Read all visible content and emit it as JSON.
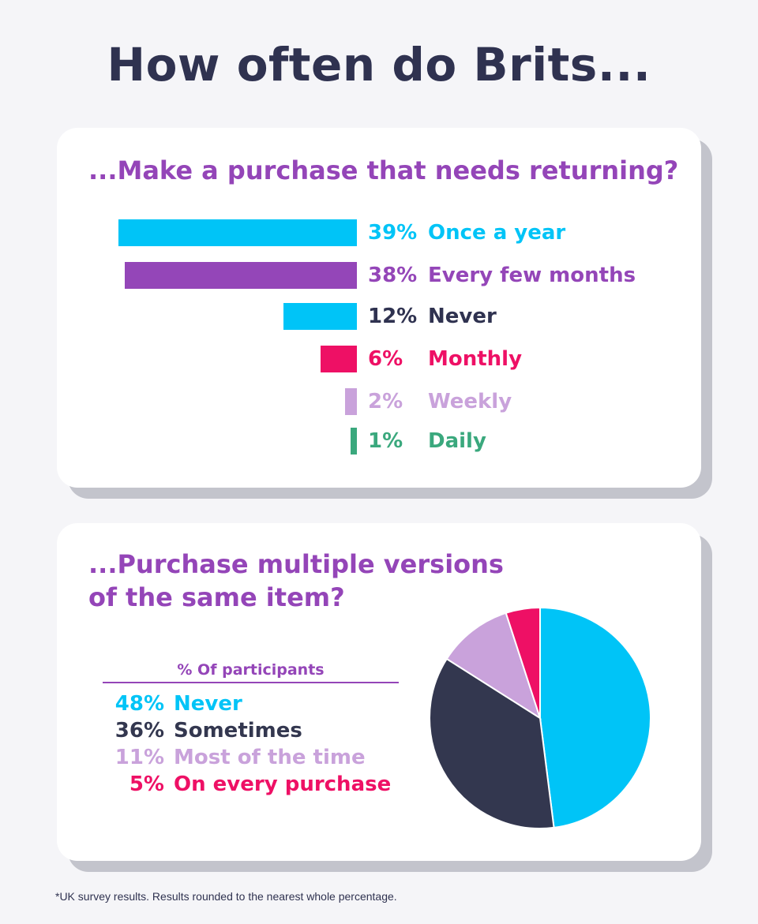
{
  "title": "How often do Brits...",
  "footnote": "*UK survey results. Results rounded to the nearest whole percentage.",
  "chart_data": [
    {
      "type": "bar",
      "title": "...Make a purchase that needs returning?",
      "orientation": "horizontal",
      "categories": [
        "Once a year",
        "Every few months",
        "Never",
        "Monthly",
        "Weekly",
        "Daily"
      ],
      "values": [
        39,
        38,
        12,
        6,
        2,
        1
      ],
      "value_labels": [
        "39%",
        "38%",
        "12%",
        "6%",
        "2%",
        "1%"
      ],
      "colors": [
        "#00c4f7",
        "#9446b8",
        "#00c4f7",
        "#ee1065",
        "#c9a2db",
        "#3aa87d"
      ],
      "label_colors": [
        "#00c4f7",
        "#9446b8",
        "#2f3250",
        "#ee1065",
        "#c9a2db",
        "#3aa87d"
      ],
      "unit": "%"
    },
    {
      "type": "pie",
      "title_lines": [
        "...Purchase multiple versions",
        "of the same item?"
      ],
      "legend_title": "% Of participants",
      "legend_position": "left",
      "categories": [
        "Never",
        "Sometimes",
        "Most of the time",
        "On every purchase"
      ],
      "values": [
        48,
        36,
        11,
        5
      ],
      "value_labels": [
        "48%",
        "36%",
        "11%",
        "5%"
      ],
      "colors": [
        "#00c4f7",
        "#33374f",
        "#c9a2db",
        "#ee1065"
      ],
      "unit": "%"
    }
  ]
}
